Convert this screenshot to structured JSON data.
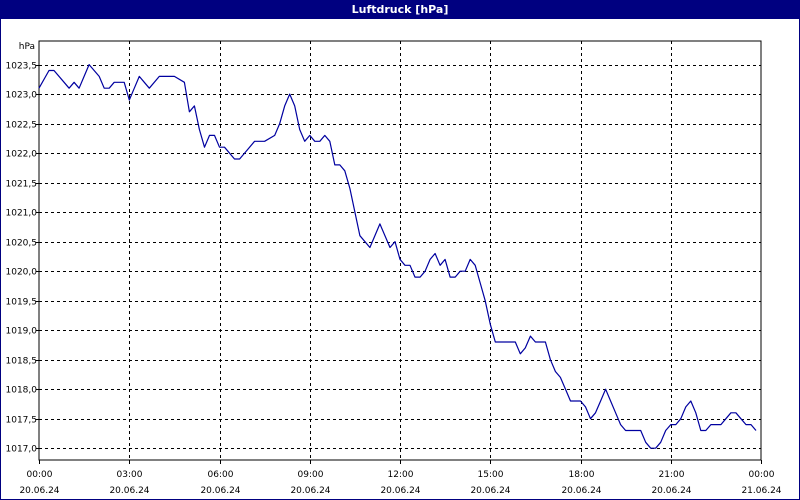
{
  "window": {
    "title": "Luftdruck [hPa]"
  },
  "colors": {
    "titlebar": "#000080",
    "line": "#0000a0",
    "grid": "#000000",
    "background": "#ffffff"
  },
  "chart_data": {
    "type": "line",
    "title": "Luftdruck [hPa]",
    "ylabel": "hPa",
    "xlabel": "",
    "ylim": [
      1016.8,
      1023.9
    ],
    "xlim": [
      "2024-06-20 00:00",
      "2024-06-21 00:00"
    ],
    "grid": true,
    "legend": "none",
    "y_ticks": [
      "1017,0",
      "1017,5",
      "1018,0",
      "1018,5",
      "1019,0",
      "1019,5",
      "1020,0",
      "1020,5",
      "1021,0",
      "1021,5",
      "1022,0",
      "1022,5",
      "1023,0",
      "1023,5"
    ],
    "x_ticks": [
      {
        "time": "00:00",
        "date": "20.06.24"
      },
      {
        "time": "03:00",
        "date": "20.06.24"
      },
      {
        "time": "06:00",
        "date": "20.06.24"
      },
      {
        "time": "09:00",
        "date": "20.06.24"
      },
      {
        "time": "12:00",
        "date": "20.06.24"
      },
      {
        "time": "15:00",
        "date": "20.06.24"
      },
      {
        "time": "18:00",
        "date": "20.06.24"
      },
      {
        "time": "21:00",
        "date": "20.06.24"
      },
      {
        "time": "00:00",
        "date": "21.06.24"
      }
    ],
    "series": [
      {
        "x": [
          "00:00",
          "00:20",
          "00:30",
          "00:50",
          "01:00",
          "01:10",
          "01:20",
          "01:30",
          "01:40",
          "02:00",
          "02:10",
          "02:20",
          "02:30",
          "02:50",
          "03:00",
          "03:10",
          "03:20",
          "03:30",
          "03:40",
          "04:00",
          "04:20",
          "04:30",
          "04:50",
          "05:00",
          "05:10",
          "05:20",
          "05:30",
          "05:40",
          "05:50",
          "06:00",
          "06:10",
          "06:30",
          "06:40",
          "06:50",
          "07:10",
          "07:20",
          "07:30",
          "07:50",
          "08:00",
          "08:10",
          "08:20",
          "08:30",
          "08:40",
          "08:50",
          "09:00",
          "09:10",
          "09:20",
          "09:30",
          "09:40",
          "09:50",
          "10:00",
          "10:10",
          "10:20",
          "10:30",
          "10:40",
          "11:00",
          "11:20",
          "11:40",
          "11:50",
          "12:00",
          "12:10",
          "12:20",
          "12:30",
          "12:40",
          "12:50",
          "13:00",
          "13:10",
          "13:20",
          "13:30",
          "13:40",
          "13:50",
          "14:00",
          "14:10",
          "14:20",
          "14:30",
          "14:40",
          "14:50",
          "15:00",
          "15:10",
          "15:20",
          "15:30",
          "15:40",
          "15:50",
          "16:00",
          "16:10",
          "16:20",
          "16:30",
          "16:40",
          "16:50",
          "17:00",
          "17:10",
          "17:20",
          "17:30",
          "17:40",
          "17:50",
          "18:00",
          "18:10",
          "18:20",
          "18:30",
          "18:40",
          "18:50",
          "19:00",
          "19:10",
          "19:20",
          "19:30",
          "19:40",
          "19:50",
          "20:00",
          "20:10",
          "20:20",
          "20:30",
          "20:40",
          "20:50",
          "21:00",
          "21:10",
          "21:20",
          "21:30",
          "21:40",
          "21:50",
          "22:00",
          "22:10",
          "22:20",
          "22:30",
          "22:40",
          "22:50",
          "23:00",
          "23:10",
          "23:20",
          "23:30",
          "23:40",
          "23:50"
        ],
        "values": [
          1023.1,
          1023.4,
          1023.4,
          1023.2,
          1023.1,
          1023.2,
          1023.1,
          1023.3,
          1023.5,
          1023.3,
          1023.1,
          1023.1,
          1023.2,
          1023.2,
          1022.9,
          1023.1,
          1023.3,
          1023.2,
          1023.1,
          1023.3,
          1023.3,
          1023.3,
          1023.2,
          1022.7,
          1022.8,
          1022.4,
          1022.1,
          1022.3,
          1022.3,
          1022.1,
          1022.1,
          1021.9,
          1021.9,
          1022.0,
          1022.2,
          1022.2,
          1022.2,
          1022.3,
          1022.5,
          1022.8,
          1023.0,
          1022.8,
          1022.4,
          1022.2,
          1022.3,
          1022.2,
          1022.2,
          1022.3,
          1022.2,
          1021.8,
          1021.8,
          1021.7,
          1021.4,
          1021.0,
          1020.6,
          1020.4,
          1020.8,
          1020.4,
          1020.5,
          1020.2,
          1020.1,
          1020.1,
          1019.9,
          1019.9,
          1020.0,
          1020.2,
          1020.3,
          1020.1,
          1020.2,
          1019.9,
          1019.9,
          1020.0,
          1020.0,
          1020.2,
          1020.1,
          1019.8,
          1019.5,
          1019.1,
          1018.8,
          1018.8,
          1018.8,
          1018.8,
          1018.8,
          1018.6,
          1018.7,
          1018.9,
          1018.8,
          1018.8,
          1018.8,
          1018.5,
          1018.3,
          1018.2,
          1018.0,
          1017.8,
          1017.8,
          1017.8,
          1017.7,
          1017.5,
          1017.6,
          1017.8,
          1018.0,
          1017.8,
          1017.6,
          1017.4,
          1017.3,
          1017.3,
          1017.3,
          1017.3,
          1017.1,
          1017.0,
          1017.0,
          1017.1,
          1017.3,
          1017.4,
          1017.4,
          1017.5,
          1017.7,
          1017.8,
          1017.6,
          1017.3,
          1017.3,
          1017.4,
          1017.4,
          1017.4,
          1017.5,
          1017.6,
          1017.6,
          1017.5,
          1017.4,
          1017.4,
          1017.3
        ]
      }
    ]
  }
}
